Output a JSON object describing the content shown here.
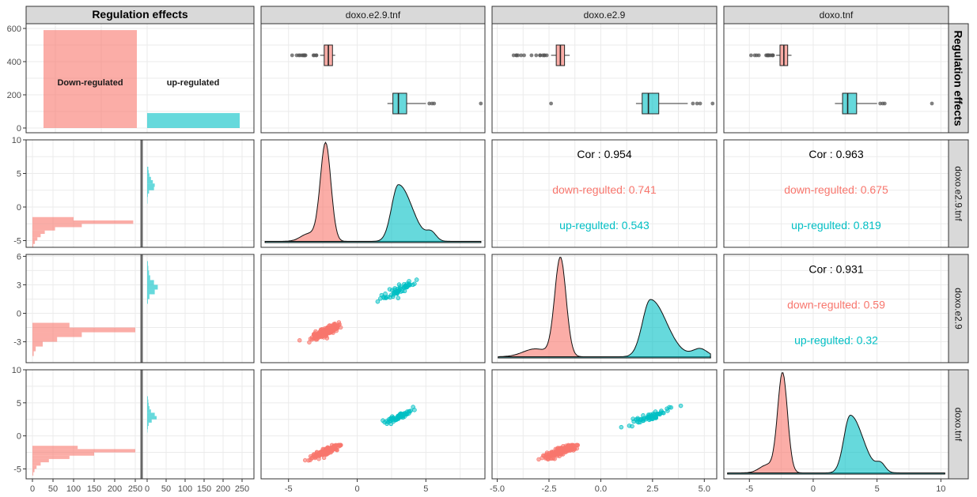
{
  "colors": {
    "down": "#F8766D",
    "up": "#00BFC4",
    "strip_bg": "#D9D9D9",
    "grid": "#EBEBEB",
    "border": "#333333",
    "cor": "#000000"
  },
  "strips": {
    "top": [
      "Regulation effects",
      "doxo.e2.9.tnf",
      "doxo.e2.9",
      "doxo.tnf"
    ],
    "right": [
      "Regulation effects",
      "doxo.e2.9.tnf",
      "doxo.e2.9",
      "doxo.tnf"
    ]
  },
  "chart_data": {
    "type": "scatter",
    "variables": [
      "Regulation effects",
      "doxo.e2.9.tnf",
      "doxo.e2.9",
      "doxo.tnf"
    ],
    "groups": [
      "Down-regulated",
      "up-regulated"
    ],
    "group_counts": {
      "Down-regulated": 590,
      "up-regulated": 90
    },
    "bar_labels": [
      "Down-regulated",
      "up-regulated"
    ],
    "row_axis_ticks": {
      "regulation": [
        "0",
        "200",
        "400",
        "600"
      ],
      "doxo.e2.9.tnf": [
        "-5",
        "0",
        "5",
        "10"
      ],
      "doxo.e2.9": [
        "-3",
        "0",
        "3",
        "6"
      ],
      "doxo.tnf": [
        "-5",
        "0",
        "5",
        "10"
      ]
    },
    "col_axis_ticks": {
      "regulation": [
        "0",
        "50",
        "100",
        "150",
        "200",
        "250",
        "0",
        "50",
        "100",
        "150",
        "200",
        "250"
      ],
      "doxo.e2.9.tnf": [
        "-5",
        "0",
        "5"
      ],
      "doxo.e2.9": [
        "-5.0",
        "-2.5",
        "0.0",
        "2.5",
        "5.0"
      ],
      "doxo.tnf": [
        "-5",
        "0",
        "5",
        "10"
      ]
    },
    "correlations": [
      {
        "pair": "doxo.e2.9.tnf vs doxo.e2.9",
        "cor": "Cor : 0.954",
        "down": "down-regulted: 0.741",
        "up": "up-regulted: 0.543"
      },
      {
        "pair": "doxo.e2.9.tnf vs doxo.tnf",
        "cor": "Cor : 0.963",
        "down": "down-regulted: 0.675",
        "up": "up-regulted: 0.819"
      },
      {
        "pair": "doxo.e2.9 vs doxo.tnf",
        "cor": "Cor : 0.931",
        "down": "down-regulted: 0.59",
        "up": "up-regulted: 0.32"
      }
    ],
    "boxplots": {
      "doxo.e2.9.tnf": {
        "down": [
          -2.7,
          -2.4,
          -2.1,
          -1.8,
          -1.6
        ],
        "up": [
          2.2,
          2.6,
          3.0,
          3.6,
          5.0
        ]
      },
      "doxo.e2.9": {
        "down": [
          -2.4,
          -2.15,
          -1.95,
          -1.75,
          -1.5
        ],
        "up": [
          1.7,
          2.0,
          2.3,
          2.8,
          4.2
        ]
      },
      "doxo.tnf": {
        "down": [
          -2.9,
          -2.6,
          -2.3,
          -2.0,
          -1.7
        ],
        "up": [
          1.7,
          2.3,
          2.7,
          3.4,
          5.0
        ]
      }
    },
    "hist_bins": {
      "doxo.e2.9.tnf": {
        "edges": [
          -6,
          -5.5,
          -5,
          -4.5,
          -4,
          -3.5,
          -3,
          -2.5,
          -2,
          -1.5
        ],
        "down": [
          2,
          6,
          12,
          20,
          30,
          55,
          120,
          245,
          100
        ],
        "up_edges": [
          0.5,
          1,
          1.5,
          2,
          2.5,
          3,
          3.5,
          4,
          4.5,
          5,
          5.5,
          6
        ],
        "up": [
          1,
          1,
          2,
          5,
          18,
          20,
          15,
          10,
          6,
          4,
          3
        ]
      },
      "doxo.e2.9": {
        "edges": [
          -4.5,
          -4,
          -3.5,
          -3,
          -2.5,
          -2,
          -1.5,
          -1
        ],
        "down": [
          3,
          8,
          25,
          60,
          120,
          250,
          90
        ],
        "up_edges": [
          1,
          1.5,
          2,
          2.5,
          3,
          3.5,
          4,
          4.5,
          5,
          5.5
        ],
        "up": [
          2,
          6,
          20,
          28,
          18,
          8,
          5,
          3,
          2
        ]
      },
      "doxo.tnf": {
        "edges": [
          -6,
          -5.5,
          -5,
          -4.5,
          -4,
          -3.5,
          -3,
          -2.5,
          -2,
          -1.5
        ],
        "down": [
          2,
          5,
          10,
          20,
          40,
          90,
          150,
          250,
          110
        ],
        "up_edges": [
          0.5,
          1,
          1.5,
          2,
          2.5,
          3,
          3.5,
          4,
          4.5,
          5,
          5.5,
          6
        ],
        "up": [
          1,
          2,
          4,
          12,
          25,
          20,
          10,
          6,
          4,
          3,
          2
        ]
      }
    },
    "series_centers": {
      "doxo.e2.9.tnf": {
        "down": -2.3,
        "down_sd": 0.7,
        "up": 3.0,
        "up_sd": 0.9
      },
      "doxo.e2.9": {
        "down": -1.95,
        "down_sd": 0.5,
        "up": 2.4,
        "up_sd": 0.7
      },
      "doxo.tnf": {
        "down": -2.4,
        "down_sd": 0.7,
        "up": 2.9,
        "up_sd": 0.9
      }
    }
  }
}
